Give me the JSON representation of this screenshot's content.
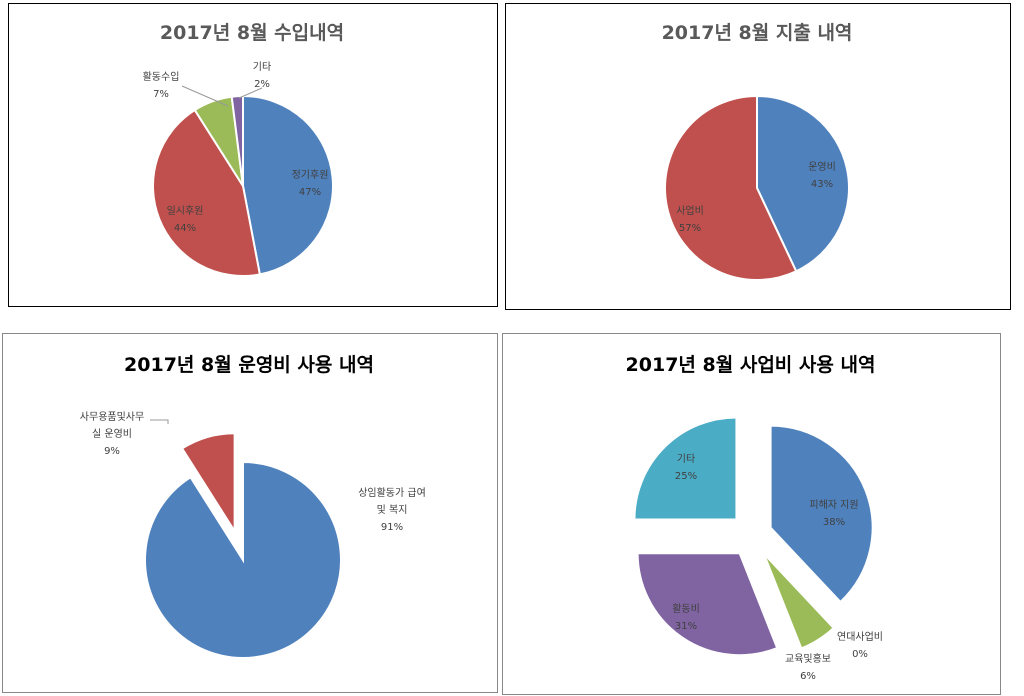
{
  "chart_data": [
    {
      "type": "pie",
      "title": "2017년 8월 수입내역",
      "title_color": "#595959",
      "slices": [
        {
          "label": "정기후원",
          "value": 47,
          "pct": "47%",
          "color": "#4F81BD"
        },
        {
          "label": "일시후원",
          "value": 44,
          "pct": "44%",
          "color": "#C0504D"
        },
        {
          "label": "활동수입",
          "value": 7,
          "pct": "7%",
          "color": "#9BBB59"
        },
        {
          "label": "기타",
          "value": 2,
          "pct": "2%",
          "color": "#8064A2"
        }
      ]
    },
    {
      "type": "pie",
      "title": "2017년 8월 지출 내역",
      "title_color": "#595959",
      "slices": [
        {
          "label": "운영비",
          "value": 43,
          "pct": "43%",
          "color": "#4F81BD"
        },
        {
          "label": "사업비",
          "value": 57,
          "pct": "57%",
          "color": "#C0504D"
        }
      ]
    },
    {
      "type": "pie",
      "title": "2017년 8월 운영비 사용 내역",
      "title_color": "#000000",
      "exploded": true,
      "slices": [
        {
          "label": "상임활동가 급여 및 복지",
          "value": 91,
          "pct": "91%",
          "color": "#4F81BD"
        },
        {
          "label": "사무용품및사무실 운영비",
          "value": 9,
          "pct": "9%",
          "color": "#C0504D"
        }
      ]
    },
    {
      "type": "pie",
      "title": "2017년 8월 사업비 사용 내역",
      "title_color": "#000000",
      "exploded": true,
      "slices": [
        {
          "label": "피해자 지원",
          "value": 38,
          "pct": "38%",
          "color": "#4F81BD"
        },
        {
          "label": "연대사업비",
          "value": 0,
          "pct": "0%",
          "color": "#C0504D"
        },
        {
          "label": "교육및홍보",
          "value": 6,
          "pct": "6%",
          "color": "#9BBB59"
        },
        {
          "label": "활동비",
          "value": 31,
          "pct": "31%",
          "color": "#8064A2"
        },
        {
          "label": "기타",
          "value": 25,
          "pct": "25%",
          "color": "#4BACC6"
        }
      ]
    }
  ]
}
